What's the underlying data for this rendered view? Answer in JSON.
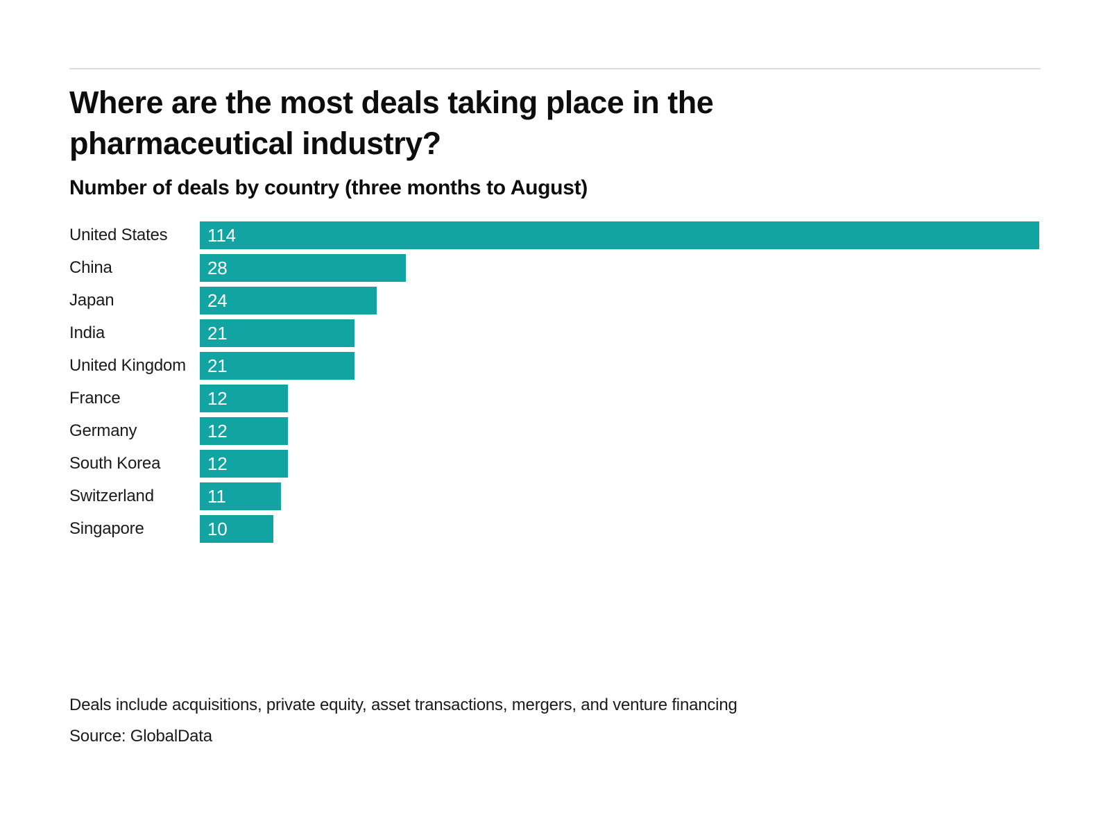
{
  "page": {
    "title": "Where are the most deals taking place in the pharmaceutical industry?",
    "subtitle": "Number of deals by country (three months to August)",
    "note": "Deals include acquisitions, private equity, asset transactions, mergers, and venture financing",
    "source": "Source: GlobalData"
  },
  "colors": {
    "bar": "#12a3a3",
    "value_text": "#ffffff",
    "title_text": "#0d0d0d",
    "label_text": "#1a1a1a",
    "rule": "#dcdcdc",
    "background": "#ffffff"
  },
  "chart_data": {
    "type": "bar",
    "orientation": "horizontal",
    "title": "Where are the most deals taking place in the pharmaceutical industry?",
    "subtitle": "Number of deals by country (three months to August)",
    "categories": [
      "United States",
      "China",
      "Japan",
      "India",
      "United Kingdom",
      "France",
      "Germany",
      "South Korea",
      "Switzerland",
      "Singapore"
    ],
    "values": [
      114,
      28,
      24,
      21,
      21,
      12,
      12,
      12,
      11,
      10
    ],
    "xlim": [
      0,
      114
    ],
    "grid": false,
    "legend": false,
    "value_labels": "inside-bar-left",
    "note": "Deals include acquisitions, private equity, asset transactions, mergers, and venture financing",
    "source": "Source: GlobalData"
  }
}
